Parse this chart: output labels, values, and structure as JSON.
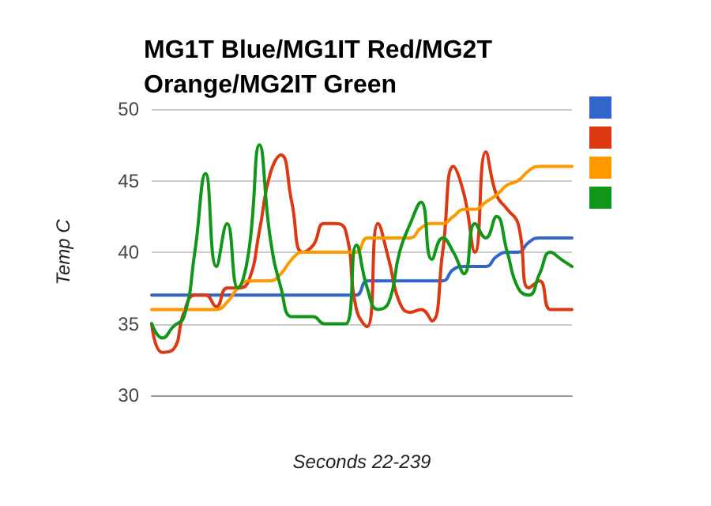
{
  "chart_data": {
    "type": "line",
    "title": "MG1T Blue/MG1IT Red/MG2T Orange/MG2IT Green",
    "xlabel": "Seconds 22-239",
    "ylabel": "Temp C",
    "categories": [
      null,
      null,
      null,
      null,
      null,
      null,
      null,
      null,
      null,
      null,
      null,
      null,
      null,
      null,
      null,
      null,
      null,
      null,
      null,
      null,
      null,
      null,
      null,
      null,
      null,
      null,
      null,
      null,
      null,
      null,
      null,
      null,
      null,
      null,
      null,
      null,
      null,
      null,
      null,
      null
    ],
    "series": [
      {
        "color": "#3366cc",
        "values": [
          37,
          37,
          37,
          37,
          37,
          37,
          37,
          37,
          37,
          37,
          37,
          37,
          37,
          37,
          37,
          37,
          37,
          37,
          37,
          37,
          38,
          38,
          38,
          38,
          38,
          38,
          38,
          38,
          38.8,
          39,
          39,
          39,
          39.7,
          40,
          40,
          40.7,
          41,
          41,
          41,
          41
        ]
      },
      {
        "color": "#dc3912",
        "values": [
          35,
          33,
          33.2,
          35.8,
          37,
          37,
          36.2,
          37.5,
          37.5,
          38,
          41.5,
          45.5,
          46.8,
          43.5,
          40,
          40.5,
          42,
          42,
          41.5,
          36,
          34.8,
          42,
          39.5,
          36.5,
          35.8,
          36,
          35.2,
          40,
          46,
          44,
          40,
          47,
          44,
          43,
          42,
          37.5,
          38,
          36,
          36,
          36
        ]
      },
      {
        "color": "#ff9900",
        "values": [
          36,
          36,
          36,
          36,
          36,
          36,
          36,
          36.5,
          37.5,
          38,
          38,
          38,
          38.5,
          39.5,
          40,
          40,
          40,
          40,
          40,
          40,
          41,
          41,
          41,
          41,
          41,
          41.7,
          42,
          42,
          42.5,
          43,
          43,
          43.5,
          44,
          44.7,
          45,
          45.7,
          46,
          46,
          46,
          46
        ]
      },
      {
        "color": "#109618",
        "values": [
          35,
          34,
          34.8,
          35.5,
          40,
          45.5,
          39,
          42,
          37.5,
          40,
          47.5,
          41,
          37.5,
          35.5,
          35.5,
          35.5,
          35,
          35,
          35,
          40.5,
          37.5,
          36,
          36.5,
          40,
          42,
          43.5,
          39.5,
          41,
          40,
          38.5,
          42,
          41,
          42.5,
          40,
          37.5,
          37,
          38.5,
          40,
          39.5,
          39
        ]
      }
    ],
    "ylim": [
      30,
      50
    ],
    "yticks": [
      30,
      35,
      40,
      45,
      50
    ],
    "grid": "y",
    "tick_labels": "y",
    "line_style": "solid"
  }
}
